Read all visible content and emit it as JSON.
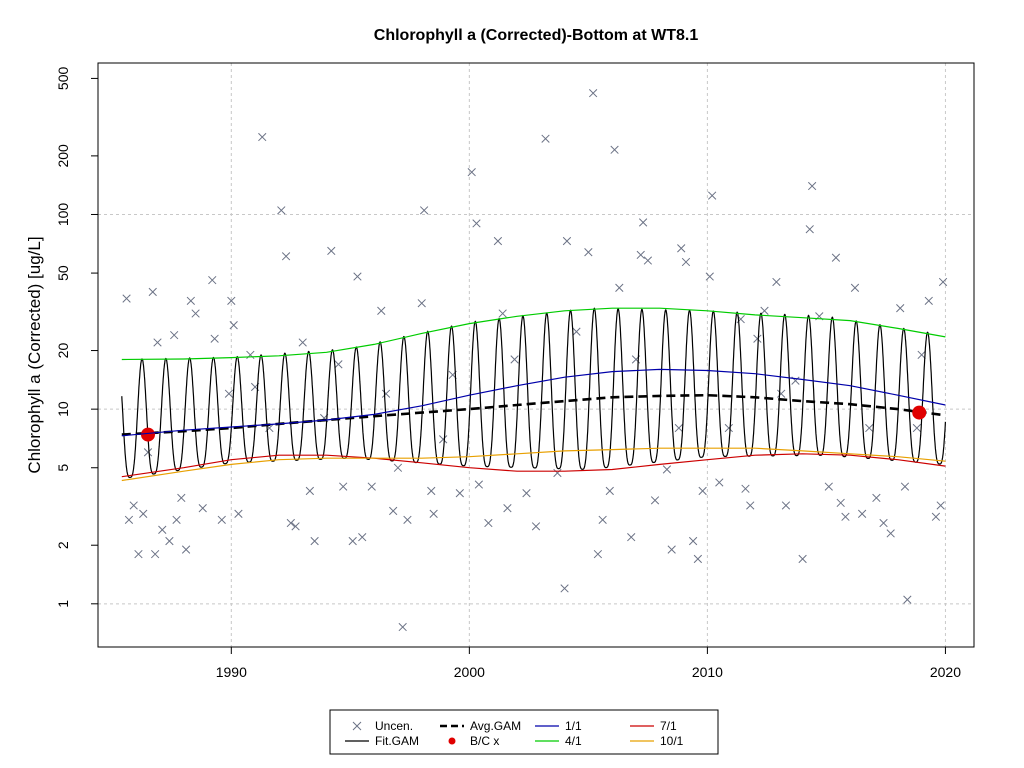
{
  "chart_data": {
    "type": "scatter",
    "title": "Chlorophyll a (Corrected)-Bottom at WT8.1",
    "xlabel": "",
    "ylabel": "Chlorophyll a (Corrected) [ug/L]",
    "xlim": [
      1984.4,
      2021.2
    ],
    "ylim": [
      0.6,
      600
    ],
    "y_scale": "log",
    "grid": true,
    "x_ticks": [
      1990,
      2000,
      2010,
      2020
    ],
    "x_tick_labels": [
      "1990",
      "2000",
      "2010",
      "2020"
    ],
    "y_ticks": [
      1,
      2,
      5,
      10,
      20,
      50,
      100,
      200,
      500
    ],
    "y_tick_labels": [
      "1",
      "2",
      "5",
      "10",
      "20",
      "50",
      "100",
      "200",
      "500"
    ],
    "legend": {
      "position": "bottom",
      "entries": [
        {
          "label": "Uncen.",
          "style": "cross",
          "color": "#6b7285"
        },
        {
          "label": "Fit.GAM",
          "style": "line",
          "color": "#000000"
        },
        {
          "label": "Avg.GAM",
          "style": "dashed",
          "color": "#000000"
        },
        {
          "label": "B/C x",
          "style": "dot",
          "color": "#e00000"
        },
        {
          "label": "1/1",
          "style": "line",
          "color": "#0000aa"
        },
        {
          "label": "4/1",
          "style": "line",
          "color": "#00cc00"
        },
        {
          "label": "7/1",
          "style": "line",
          "color": "#cc0000"
        },
        {
          "label": "10/1",
          "style": "line",
          "color": "#e8a000"
        }
      ]
    },
    "series": [
      {
        "name": "Uncen.",
        "kind": "points",
        "color": "#6b7285",
        "points": [
          [
            1985.6,
            37
          ],
          [
            1985.7,
            2.7
          ],
          [
            1985.9,
            3.2
          ],
          [
            1986.1,
            1.8
          ],
          [
            1986.3,
            2.9
          ],
          [
            1986.5,
            6
          ],
          [
            1986.7,
            40
          ],
          [
            1986.8,
            1.8
          ],
          [
            1986.9,
            22
          ],
          [
            1987.1,
            2.4
          ],
          [
            1987.4,
            2.1
          ],
          [
            1987.6,
            24
          ],
          [
            1987.7,
            2.7
          ],
          [
            1987.9,
            3.5
          ],
          [
            1988.1,
            1.9
          ],
          [
            1988.3,
            36
          ],
          [
            1988.5,
            31
          ],
          [
            1988.8,
            3.1
          ],
          [
            1989.2,
            46
          ],
          [
            1989.3,
            23
          ],
          [
            1989.6,
            2.7
          ],
          [
            1989.9,
            12
          ],
          [
            1990.0,
            36
          ],
          [
            1990.1,
            27
          ],
          [
            1990.3,
            2.9
          ],
          [
            1990.8,
            19
          ],
          [
            1991.0,
            13
          ],
          [
            1991.3,
            250
          ],
          [
            1991.6,
            8
          ],
          [
            1992.1,
            105
          ],
          [
            1992.3,
            61
          ],
          [
            1992.5,
            2.6
          ],
          [
            1992.7,
            2.5
          ],
          [
            1993.0,
            22
          ],
          [
            1993.3,
            3.8
          ],
          [
            1993.5,
            2.1
          ],
          [
            1993.9,
            9
          ],
          [
            1994.2,
            65
          ],
          [
            1994.5,
            17
          ],
          [
            1994.7,
            4
          ],
          [
            1995.1,
            2.1
          ],
          [
            1995.3,
            48
          ],
          [
            1995.5,
            2.2
          ],
          [
            1995.9,
            4
          ],
          [
            1996.3,
            32
          ],
          [
            1996.5,
            12
          ],
          [
            1996.8,
            3
          ],
          [
            1997.0,
            5
          ],
          [
            1997.2,
            0.76
          ],
          [
            1997.4,
            2.7
          ],
          [
            1998.0,
            35
          ],
          [
            1998.1,
            105
          ],
          [
            1998.4,
            3.8
          ],
          [
            1998.5,
            2.9
          ],
          [
            1998.9,
            7
          ],
          [
            1999.3,
            15
          ],
          [
            1999.6,
            3.7
          ],
          [
            2000.1,
            165
          ],
          [
            2000.3,
            90
          ],
          [
            2000.4,
            4.1
          ],
          [
            2000.8,
            2.6
          ],
          [
            2001.2,
            73
          ],
          [
            2001.4,
            31
          ],
          [
            2001.6,
            3.1
          ],
          [
            2001.9,
            18
          ],
          [
            2002.4,
            3.7
          ],
          [
            2002.8,
            2.5
          ],
          [
            2003.2,
            245
          ],
          [
            2003.7,
            4.7
          ],
          [
            2004.0,
            1.2
          ],
          [
            2004.1,
            73
          ],
          [
            2004.5,
            25
          ],
          [
            2005.0,
            64
          ],
          [
            2005.2,
            420
          ],
          [
            2005.4,
            1.8
          ],
          [
            2005.6,
            2.7
          ],
          [
            2005.9,
            3.8
          ],
          [
            2006.1,
            215
          ],
          [
            2006.3,
            42
          ],
          [
            2006.8,
            2.2
          ],
          [
            2007.0,
            18
          ],
          [
            2007.2,
            62
          ],
          [
            2007.3,
            91
          ],
          [
            2007.5,
            58
          ],
          [
            2007.8,
            3.4
          ],
          [
            2008.3,
            4.9
          ],
          [
            2008.5,
            1.9
          ],
          [
            2008.8,
            8
          ],
          [
            2008.9,
            67
          ],
          [
            2009.1,
            57
          ],
          [
            2009.4,
            2.1
          ],
          [
            2009.6,
            1.7
          ],
          [
            2009.8,
            3.8
          ],
          [
            2010.1,
            48
          ],
          [
            2010.2,
            125
          ],
          [
            2010.5,
            4.2
          ],
          [
            2010.9,
            8
          ],
          [
            2011.4,
            29
          ],
          [
            2011.6,
            3.9
          ],
          [
            2011.8,
            3.2
          ],
          [
            2012.1,
            23
          ],
          [
            2012.4,
            32
          ],
          [
            2012.9,
            45
          ],
          [
            2013.1,
            12
          ],
          [
            2013.3,
            3.2
          ],
          [
            2013.7,
            14
          ],
          [
            2014.0,
            1.7
          ],
          [
            2014.3,
            84
          ],
          [
            2014.4,
            140
          ],
          [
            2014.7,
            30
          ],
          [
            2015.1,
            4
          ],
          [
            2015.4,
            60
          ],
          [
            2015.6,
            3.3
          ],
          [
            2015.8,
            2.8
          ],
          [
            2016.2,
            42
          ],
          [
            2016.5,
            2.9
          ],
          [
            2016.8,
            8
          ],
          [
            2017.1,
            3.5
          ],
          [
            2017.4,
            2.6
          ],
          [
            2017.7,
            2.3
          ],
          [
            2018.1,
            33
          ],
          [
            2018.3,
            4
          ],
          [
            2018.4,
            1.05
          ],
          [
            2018.8,
            8
          ],
          [
            2019.0,
            19
          ],
          [
            2019.3,
            36
          ],
          [
            2019.6,
            2.8
          ],
          [
            2019.8,
            3.2
          ],
          [
            2019.9,
            45
          ]
        ]
      },
      {
        "name": "Fit.GAM",
        "kind": "seasonal",
        "color": "#000000",
        "knots": [
          [
            1985.4,
            7.4,
            18,
            4.4
          ],
          [
            1990,
            8.1,
            18.5,
            5.3
          ],
          [
            1995,
            9.2,
            20.5,
            5.6
          ],
          [
            2000,
            10.8,
            28,
            5.1
          ],
          [
            2005,
            13.5,
            33,
            4.9
          ],
          [
            2010,
            15.5,
            32,
            5.7
          ],
          [
            2015,
            13.5,
            30,
            5.8
          ],
          [
            2020,
            10.5,
            24,
            5.2
          ]
        ]
      },
      {
        "name": "Avg.GAM",
        "kind": "line",
        "color": "#000000",
        "points": [
          [
            1985.4,
            7.4
          ],
          [
            1988,
            7.7
          ],
          [
            1990,
            8.0
          ],
          [
            1992,
            8.4
          ],
          [
            1994,
            8.8
          ],
          [
            1996,
            9.2
          ],
          [
            1998,
            9.6
          ],
          [
            2000,
            10.0
          ],
          [
            2002,
            10.5
          ],
          [
            2004,
            11.0
          ],
          [
            2006,
            11.5
          ],
          [
            2008,
            11.7
          ],
          [
            2010,
            11.8
          ],
          [
            2012,
            11.5
          ],
          [
            2014,
            11.0
          ],
          [
            2016,
            10.6
          ],
          [
            2018,
            10.0
          ],
          [
            2020,
            9.3
          ]
        ]
      },
      {
        "name": "B/C x",
        "kind": "dots",
        "color": "#e00000",
        "points": [
          [
            1986.5,
            7.4
          ],
          [
            2018.9,
            9.6
          ]
        ]
      },
      {
        "name": "1/1",
        "kind": "line",
        "color": "#0000aa",
        "points": [
          [
            1985.4,
            7.3
          ],
          [
            1988,
            7.8
          ],
          [
            1990,
            8.1
          ],
          [
            1992,
            8.4
          ],
          [
            1994,
            8.8
          ],
          [
            1996,
            9.4
          ],
          [
            1998,
            10.4
          ],
          [
            2000,
            11.8
          ],
          [
            2002,
            13.2
          ],
          [
            2004,
            14.6
          ],
          [
            2006,
            15.6
          ],
          [
            2008,
            16.0
          ],
          [
            2010,
            15.8
          ],
          [
            2012,
            15.2
          ],
          [
            2014,
            14.2
          ],
          [
            2016,
            13.2
          ],
          [
            2018,
            11.8
          ],
          [
            2020,
            10.5
          ]
        ]
      },
      {
        "name": "4/1",
        "kind": "line",
        "color": "#00cc00",
        "points": [
          [
            1985.4,
            18
          ],
          [
            1988,
            18.1
          ],
          [
            1990,
            18.4
          ],
          [
            1992,
            18.8
          ],
          [
            1994,
            19.6
          ],
          [
            1996,
            21.5
          ],
          [
            1998,
            24.5
          ],
          [
            2000,
            27.5
          ],
          [
            2002,
            30
          ],
          [
            2004,
            32
          ],
          [
            2006,
            33
          ],
          [
            2008,
            33
          ],
          [
            2010,
            32
          ],
          [
            2012,
            30.5
          ],
          [
            2014,
            29.5
          ],
          [
            2016,
            28.5
          ],
          [
            2018,
            26
          ],
          [
            2020,
            23.5
          ]
        ]
      },
      {
        "name": "7/1",
        "kind": "line",
        "color": "#cc0000",
        "points": [
          [
            1985.4,
            4.5
          ],
          [
            1988,
            5
          ],
          [
            1990,
            5.5
          ],
          [
            1992,
            5.8
          ],
          [
            1994,
            5.8
          ],
          [
            1996,
            5.6
          ],
          [
            1998,
            5.3
          ],
          [
            2000,
            5.0
          ],
          [
            2002,
            4.8
          ],
          [
            2004,
            4.8
          ],
          [
            2006,
            4.9
          ],
          [
            2008,
            5.2
          ],
          [
            2010,
            5.5
          ],
          [
            2012,
            5.8
          ],
          [
            2014,
            5.9
          ],
          [
            2016,
            5.8
          ],
          [
            2018,
            5.5
          ],
          [
            2020,
            5.1
          ]
        ]
      },
      {
        "name": "10/1",
        "kind": "line",
        "color": "#e8a000",
        "points": [
          [
            1985.4,
            4.3
          ],
          [
            1988,
            4.8
          ],
          [
            1990,
            5.2
          ],
          [
            1992,
            5.5
          ],
          [
            1994,
            5.6
          ],
          [
            1996,
            5.6
          ],
          [
            1998,
            5.6
          ],
          [
            2000,
            5.7
          ],
          [
            2002,
            5.9
          ],
          [
            2004,
            6.1
          ],
          [
            2006,
            6.2
          ],
          [
            2008,
            6.3
          ],
          [
            2010,
            6.3
          ],
          [
            2012,
            6.3
          ],
          [
            2014,
            6.1
          ],
          [
            2016,
            5.9
          ],
          [
            2018,
            5.7
          ],
          [
            2020,
            5.4
          ]
        ]
      }
    ]
  }
}
